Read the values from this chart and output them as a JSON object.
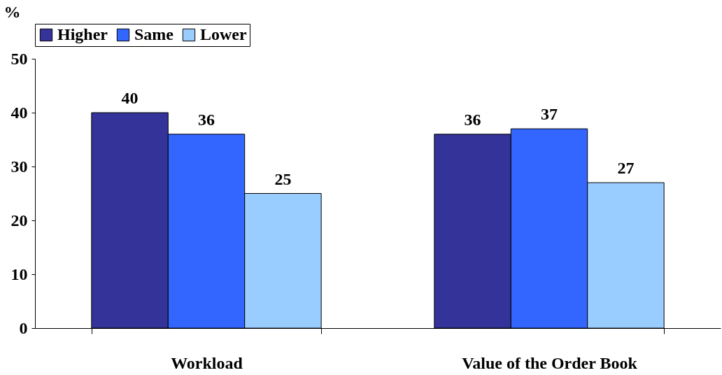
{
  "chart_data": {
    "type": "bar",
    "categories": [
      "Workload",
      "Value of the Order Book"
    ],
    "series": [
      {
        "name": "Higher",
        "color": "#333399",
        "values": [
          40,
          36
        ]
      },
      {
        "name": "Same",
        "color": "#3366ff",
        "values": [
          36,
          37
        ]
      },
      {
        "name": "Lower",
        "color": "#99ccff",
        "values": [
          25,
          27
        ]
      }
    ],
    "ylabel": "%",
    "ylim": [
      0,
      50
    ],
    "yticks": [
      0,
      10,
      20,
      30,
      40,
      50
    ],
    "data_labels": true,
    "grid": false,
    "legend": "top"
  }
}
